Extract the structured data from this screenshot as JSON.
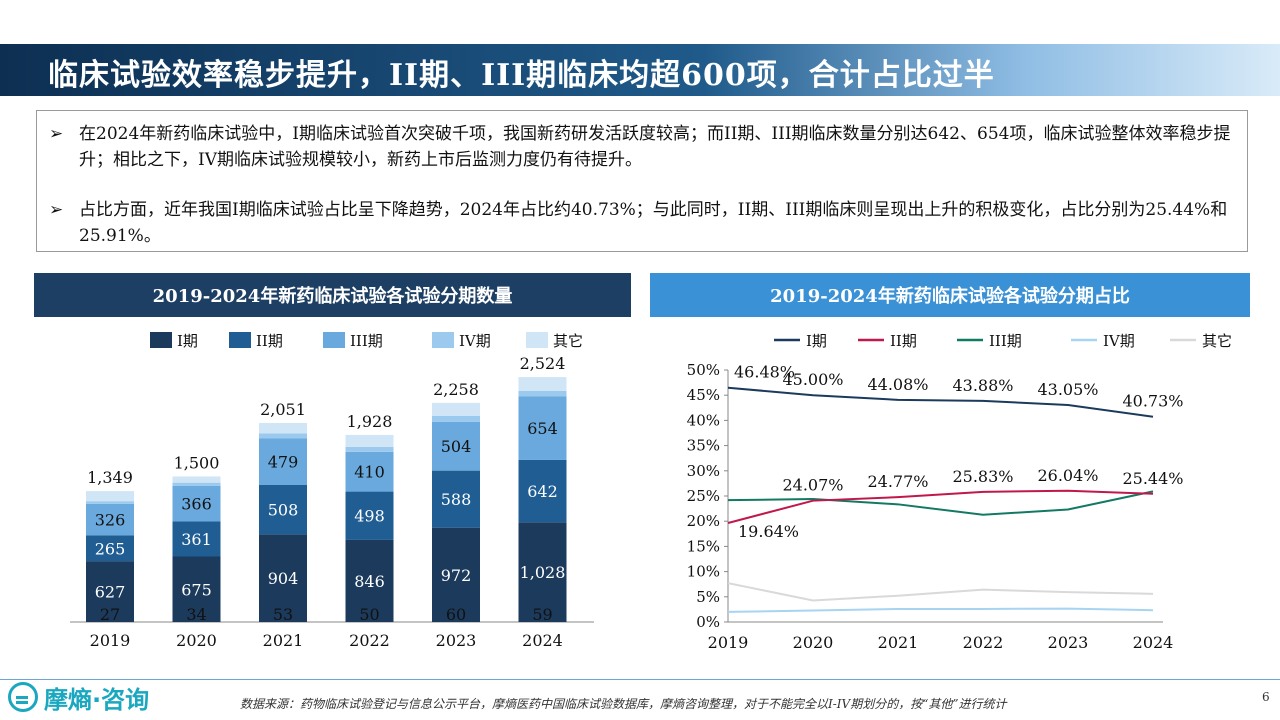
{
  "slide": {
    "title": "临床试验效率稳步提升，II期、III期临床均超600项，合计占比过半",
    "bullets": [
      "在2024年新药临床试验中，I期临床试验首次突破千项，我国新药研发活跃度较高；而II期、III期临床数量分别达642、654项，临床试验整体效率稳步提升；相比之下，IV期临床试验规模较小，新药上市后监测力度仍有待提升。",
      "占比方面，近年我国I期临床试验占比呈下降趋势，2024年占比约40.73%；与此同时，II期、III期临床则呈现出上升的积极变化，占比分别为25.44%和25.91%。"
    ],
    "bullet_mark": "➢",
    "footer": {
      "logo_text": "摩熵·咨询",
      "source": "数据来源：药物临床试验登记与信息公示平台，摩熵医药中国临床试验数据库，摩熵咨询整理，对于不能完全以I-IV期划分的，按“其他”进行统计",
      "page": "6"
    }
  },
  "chart_data": [
    {
      "type": "bar",
      "stacked": true,
      "title": "2019-2024年新药临床试验各试验分期数量",
      "categories": [
        "2019",
        "2020",
        "2021",
        "2022",
        "2023",
        "2024"
      ],
      "legend_position": "top",
      "series": [
        {
          "name": "I期",
          "color": "#1b3a5c",
          "values": [
            627,
            675,
            904,
            846,
            972,
            1028
          ]
        },
        {
          "name": "II期",
          "color": "#1f5d93",
          "values": [
            265,
            361,
            508,
            498,
            588,
            642
          ]
        },
        {
          "name": "III期",
          "color": "#6aa9dd",
          "values": [
            326,
            366,
            479,
            410,
            504,
            654
          ]
        },
        {
          "name": "IV期",
          "color": "#9ccaee",
          "values": [
            27,
            34,
            53,
            50,
            60,
            59
          ]
        },
        {
          "name": "其它",
          "color": "#d0e5f6",
          "values": [
            104,
            64,
            107,
            124,
            134,
            141
          ]
        }
      ],
      "totals": [
        1349,
        1500,
        2051,
        1928,
        2258,
        2524
      ],
      "total_labels": [
        "1,349",
        "1,500",
        "2,051",
        "1,928",
        "2,258",
        "2,524"
      ],
      "segment_labels": {
        "I期": [
          "627",
          "675",
          "904",
          "846",
          "972",
          "1,028"
        ],
        "II期": [
          "265",
          "361",
          "508",
          "498",
          "588",
          "642"
        ],
        "III期": [
          "326",
          "366",
          "479",
          "410",
          "504",
          "654"
        ],
        "IV期": [
          "27",
          "34",
          "53",
          "50",
          "60",
          "59"
        ]
      },
      "ylim": [
        0,
        2700
      ],
      "grid": false
    },
    {
      "type": "line",
      "title": "2019-2024年新药临床试验各试验分期占比",
      "x": [
        "2019",
        "2020",
        "2021",
        "2022",
        "2023",
        "2024"
      ],
      "legend_position": "top",
      "yticks": [
        "0%",
        "5%",
        "10%",
        "15%",
        "20%",
        "25%",
        "30%",
        "35%",
        "40%",
        "45%",
        "50%"
      ],
      "ylim": [
        0,
        50
      ],
      "y_unit": "%",
      "grid": false,
      "series": [
        {
          "name": "I期",
          "color": "#1b3a5c",
          "values": [
            46.48,
            45.0,
            44.08,
            43.88,
            43.05,
            40.73
          ],
          "labels": [
            "46.48%",
            "45.00%",
            "44.08%",
            "43.88%",
            "43.05%",
            "40.73%"
          ]
        },
        {
          "name": "II期",
          "color": "#c0184a",
          "values": [
            19.64,
            24.07,
            24.77,
            25.83,
            26.04,
            25.44
          ],
          "labels": [
            "19.64%",
            "24.07%",
            "24.77%",
            "25.83%",
            "26.04%",
            "25.44%"
          ]
        },
        {
          "name": "III期",
          "color": "#127a63",
          "values": [
            24.17,
            24.4,
            23.35,
            21.27,
            22.32,
            25.91
          ]
        },
        {
          "name": "IV期",
          "color": "#a7d4f1",
          "values": [
            2.0,
            2.27,
            2.58,
            2.59,
            2.66,
            2.34
          ]
        },
        {
          "name": "其它",
          "color": "#d9d9d9",
          "values": [
            7.71,
            4.27,
            5.22,
            6.43,
            5.93,
            5.59
          ]
        }
      ]
    }
  ]
}
